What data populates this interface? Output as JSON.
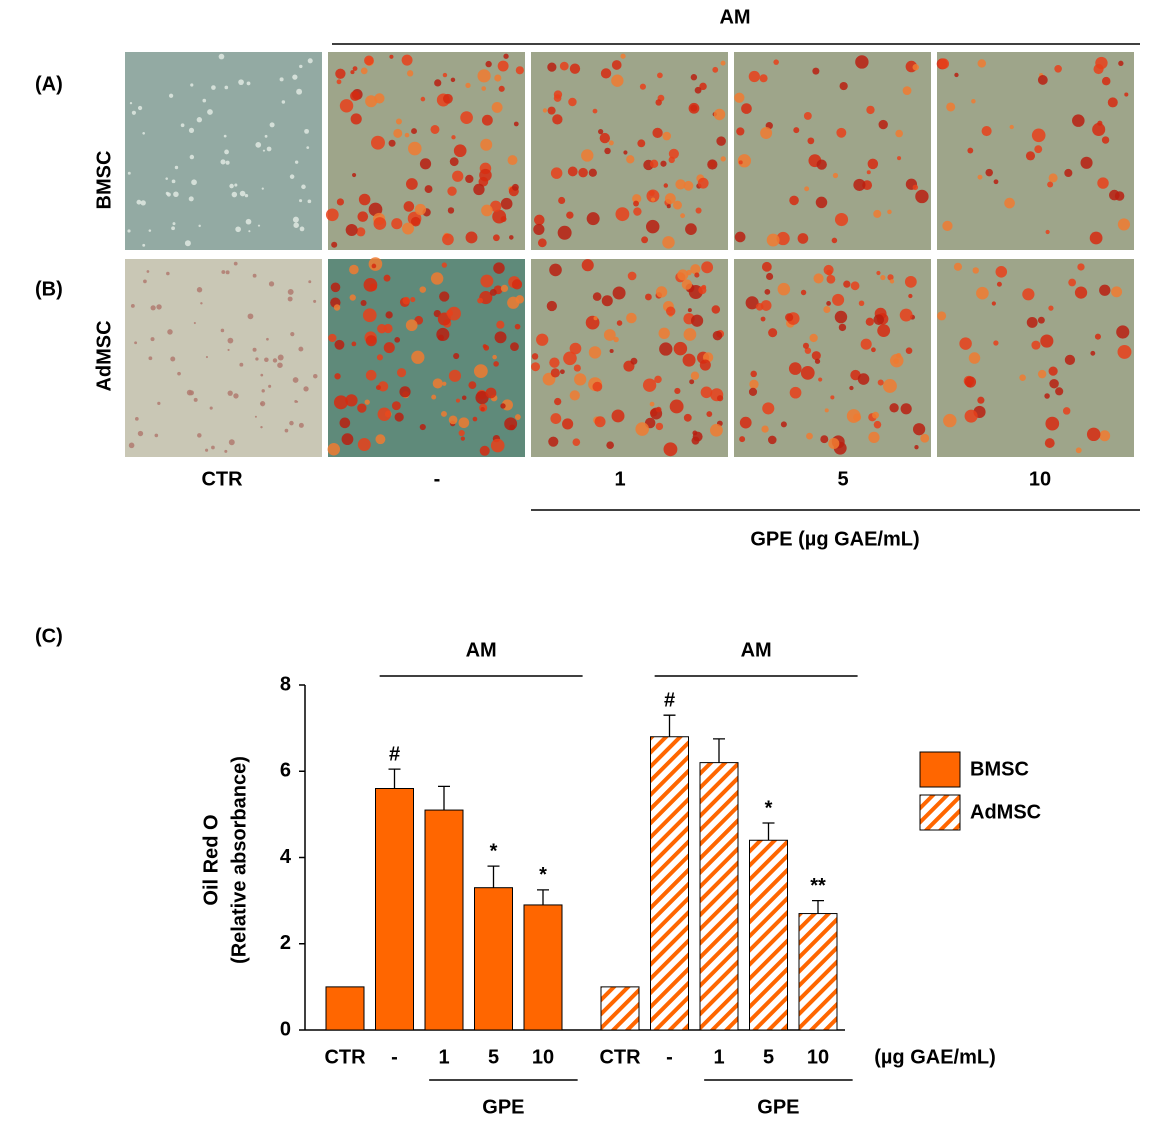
{
  "figure": {
    "panel_a": "(A)",
    "panel_b": "(B)",
    "panel_c": "(C)",
    "am_label": "AM",
    "row_labels": [
      "BMSC",
      "AdMSC"
    ],
    "col_labels": [
      "CTR",
      "-",
      "1",
      "5",
      "10"
    ],
    "gpe_label": "GPE (µg GAE/mL)"
  },
  "chart_data": {
    "type": "bar",
    "ylabel": [
      "Oil Red O",
      "(Relative absorbance)"
    ],
    "categories": [
      "CTR",
      "-",
      "1",
      "5",
      "10"
    ],
    "group_label": "AM",
    "treatment_label": "GPE",
    "unit_label": "(µg GAE/mL)",
    "series": [
      {
        "name": "BMSC",
        "color": "#ff6600",
        "pattern": "solid",
        "values": [
          1,
          5.6,
          5.1,
          3.3,
          2.9
        ],
        "errors": [
          0,
          0.45,
          0.55,
          0.5,
          0.35
        ],
        "annotations": [
          null,
          "#",
          null,
          "*",
          "*"
        ]
      },
      {
        "name": "AdMSC",
        "color": "#ff6600",
        "pattern": "hatch",
        "values": [
          1,
          6.8,
          6.2,
          4.4,
          2.7
        ],
        "errors": [
          0,
          0.5,
          0.55,
          0.4,
          0.3
        ],
        "annotations": [
          null,
          "#",
          null,
          "*",
          "**"
        ]
      }
    ],
    "ylim": [
      0,
      8
    ],
    "yticks": [
      0,
      2,
      4,
      6,
      8
    ],
    "grid": false
  }
}
